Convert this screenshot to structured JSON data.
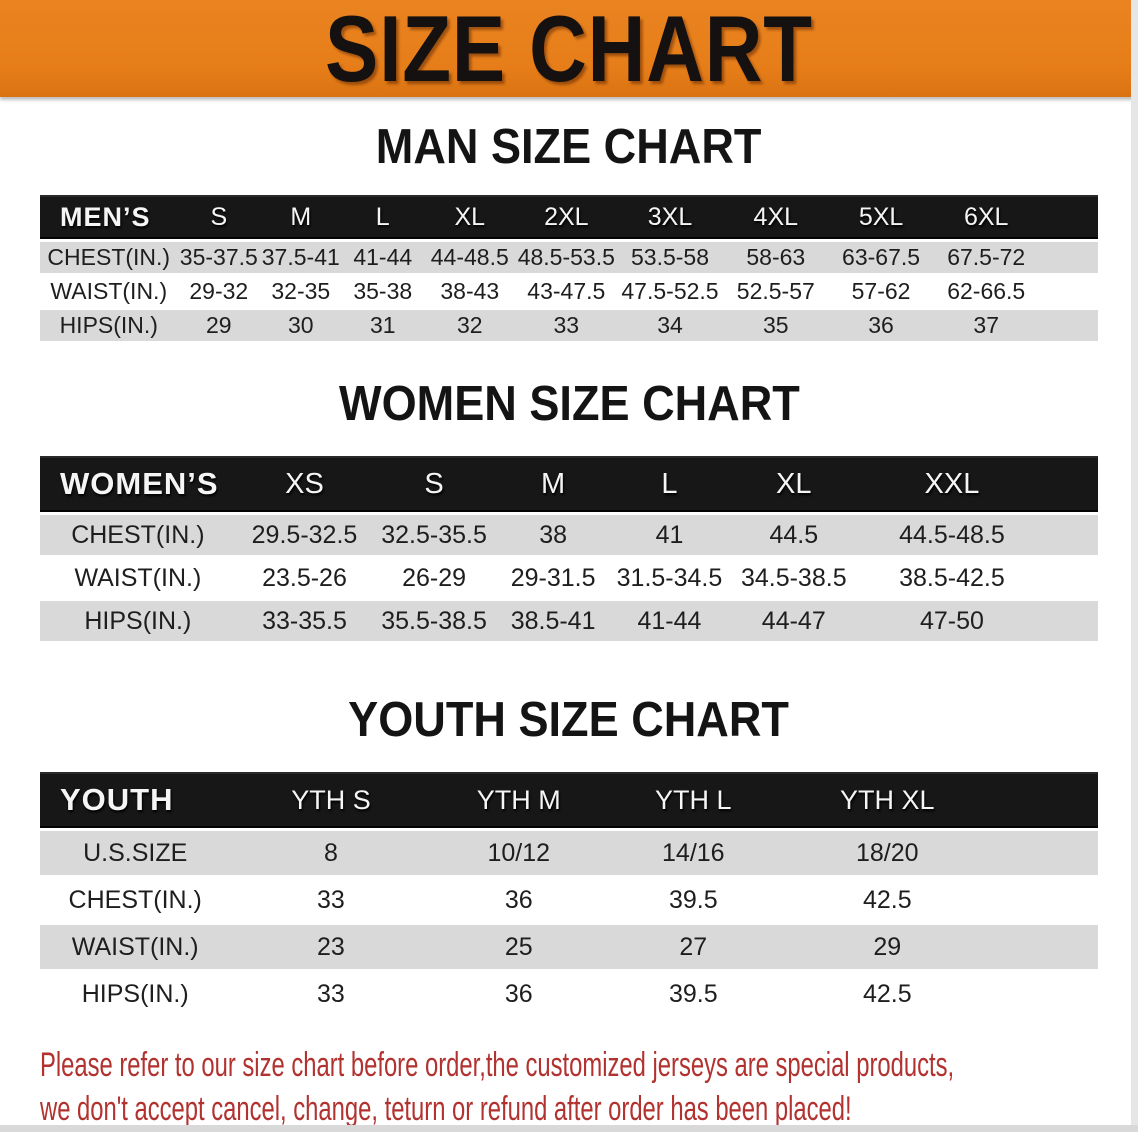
{
  "banner": {
    "title": "SIZE CHART"
  },
  "headings": {
    "men": "MAN SIZE CHART",
    "women": "WOMEN SIZE CHART",
    "youth": "YOUTH SIZE CHART"
  },
  "tables": {
    "men": {
      "label": "MEN’S",
      "sizes": [
        "S",
        "M",
        "L",
        "XL",
        "2XL",
        "3XL",
        "4XL",
        "5XL",
        "6XL"
      ],
      "rows": [
        {
          "label": "CHEST(IN.)",
          "values": [
            "35-37.5",
            "37.5-41",
            "41-44",
            "44-48.5",
            "48.5-53.5",
            "53.5-58",
            "58-63",
            "63-67.5",
            "67.5-72"
          ]
        },
        {
          "label": "WAIST(IN.)",
          "values": [
            "29-32",
            "32-35",
            "35-38",
            "38-43",
            "43-47.5",
            "47.5-52.5",
            "52.5-57",
            "57-62",
            "62-66.5"
          ]
        },
        {
          "label": "HIPS(IN.)",
          "values": [
            "29",
            "30",
            "31",
            "32",
            "33",
            "34",
            "35",
            "36",
            "37"
          ]
        }
      ]
    },
    "women": {
      "label": "WOMEN’S",
      "sizes": [
        "XS",
        "S",
        "M",
        "L",
        "XL",
        "XXL"
      ],
      "rows": [
        {
          "label": "CHEST(IN.)",
          "values": [
            "29.5-32.5",
            "32.5-35.5",
            "38",
            "41",
            "44.5",
            "44.5-48.5"
          ]
        },
        {
          "label": "WAIST(IN.)",
          "values": [
            "23.5-26",
            "26-29",
            "29-31.5",
            "31.5-34.5",
            "34.5-38.5",
            "38.5-42.5"
          ]
        },
        {
          "label": "HIPS(IN.)",
          "values": [
            "33-35.5",
            "35.5-38.5",
            "38.5-41",
            "41-44",
            "44-47",
            "47-50"
          ]
        }
      ]
    },
    "youth": {
      "label": "YOUTH",
      "sizes": [
        "YTH S",
        "YTH M",
        "YTH L",
        "YTH XL"
      ],
      "rows": [
        {
          "label": "U.S.SIZE",
          "values": [
            "8",
            "10/12",
            "14/16",
            "18/20"
          ]
        },
        {
          "label": "CHEST(IN.)",
          "values": [
            "33",
            "36",
            "39.5",
            "42.5"
          ]
        },
        {
          "label": "WAIST(IN.)",
          "values": [
            "23",
            "25",
            "27",
            "29"
          ]
        },
        {
          "label": "HIPS(IN.)",
          "values": [
            "33",
            "36",
            "39.5",
            "42.5"
          ]
        }
      ]
    }
  },
  "footer": {
    "line1": "Please refer to our size chart before order,the customized jerseys are special products,",
    "line2": "we don't accept cancel, change, teturn or refund after order has been placed!"
  },
  "colors": {
    "banner_orange": "#e67d19",
    "table_header_black": "#171717",
    "row_gray": "#d9d9d9",
    "footer_red": "#b23230",
    "banner_text": "#141110"
  }
}
